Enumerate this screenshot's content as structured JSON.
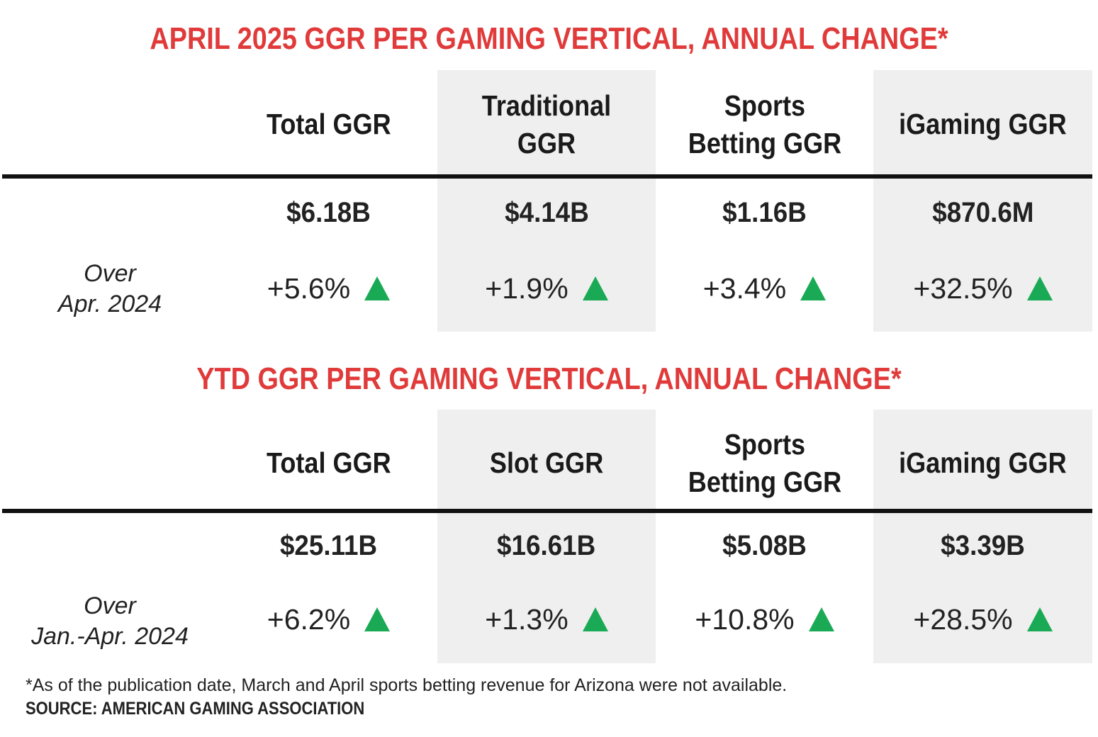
{
  "chart_data": [
    {
      "type": "table",
      "title": "APRIL 2025 GGR PER GAMING VERTICAL, ANNUAL CHANGE*",
      "columns": [
        "Total GGR",
        "Traditional GGR",
        "Sports Betting GGR",
        "iGaming GGR"
      ],
      "values": [
        "$6.18B",
        "$4.14B",
        "$1.16B",
        "$870.6M"
      ],
      "changes": [
        "+5.6%",
        "+1.9%",
        "+3.4%",
        "+32.5%"
      ],
      "row_label": [
        "Over",
        "Apr. 2024"
      ],
      "arrow_color": "#1aaa55"
    },
    {
      "type": "table",
      "title": "YTD GGR PER GAMING VERTICAL, ANNUAL CHANGE*",
      "columns": [
        "Total GGR",
        "Slot GGR",
        "Sports Betting GGR",
        "iGaming GGR"
      ],
      "values": [
        "$25.11B",
        "$16.61B",
        "$5.08B",
        "$3.39B"
      ],
      "changes": [
        "+6.2%",
        "+1.3%",
        "+10.8%",
        "+28.5%"
      ],
      "row_label": [
        "Over",
        "Jan.-Apr. 2024"
      ],
      "arrow_color": "#1aaa55"
    }
  ],
  "colors": {
    "title": "#e03a3a",
    "shaded_column": "#efefef",
    "rule": "#111111",
    "up_arrow": "#1aaa55"
  },
  "footnote": "*As of the publication date, March and April sports betting revenue for Arizona were not available.",
  "source": "SOURCE: AMERICAN GAMING ASSOCIATION"
}
